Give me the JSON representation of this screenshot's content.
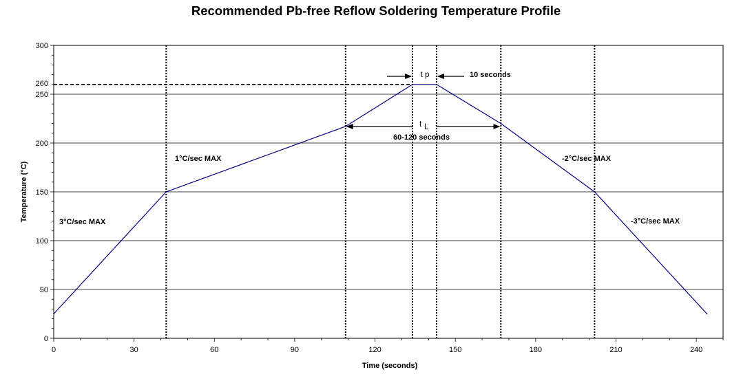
{
  "chart_data": {
    "type": "line",
    "title": "Recommended Pb-free Reflow Soldering Temperature Profile",
    "xlabel": "Time (seconds)",
    "ylabel": "Temperature (°C)",
    "xlim": [
      0,
      250
    ],
    "ylim": [
      0,
      300
    ],
    "x_ticks": [
      0,
      30,
      60,
      90,
      120,
      150,
      180,
      210,
      240
    ],
    "y_ticks": [
      0,
      50,
      100,
      150,
      200,
      250,
      260,
      300
    ],
    "grid": "horizontal",
    "series": [
      {
        "color": "#000080",
        "x": [
          0,
          42,
          109,
          134,
          143,
          167,
          202,
          244
        ],
        "y": [
          25,
          150,
          217,
          260,
          260,
          220,
          150,
          25
        ]
      }
    ],
    "vertical_markers_x": [
      42,
      109,
      134,
      143,
      167,
      202
    ],
    "reference_line": {
      "y": 260,
      "x_end": 134,
      "style": "dashed"
    },
    "annotations": {
      "ramp1": "3°C/sec MAX",
      "ramp2": "1°C/sec MAX",
      "ramp3": "-2°C/sec MAX",
      "ramp4": "-3°C/sec MAX",
      "tp_label": "t p",
      "tp_value": "10 seconds",
      "tl_label_main": "t",
      "tl_label_sub": "L",
      "tl_value": "60-120 seconds"
    }
  }
}
